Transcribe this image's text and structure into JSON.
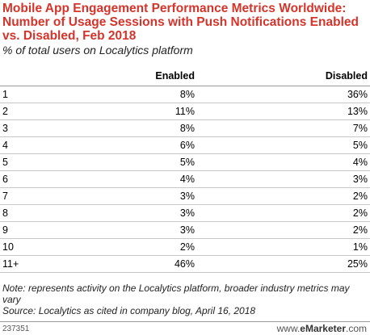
{
  "chart_data": {
    "type": "table",
    "title": "Mobile App Engagement Performance Metrics Worldwide: Number of Usage Sessions with Push Notifications Enabled vs. Disabled, Feb 2018",
    "subtitle": "% of total users on Localytics platform",
    "columns": [
      "",
      "Enabled",
      "Disabled"
    ],
    "categories": [
      "1",
      "2",
      "3",
      "4",
      "5",
      "6",
      "7",
      "8",
      "9",
      "10",
      "11+"
    ],
    "series": [
      {
        "name": "Enabled",
        "values": [
          "8%",
          "11%",
          "8%",
          "6%",
          "5%",
          "4%",
          "3%",
          "3%",
          "3%",
          "2%",
          "46%"
        ]
      },
      {
        "name": "Disabled",
        "values": [
          "36%",
          "13%",
          "7%",
          "5%",
          "4%",
          "3%",
          "2%",
          "2%",
          "2%",
          "1%",
          "25%"
        ]
      }
    ]
  },
  "footer": {
    "note": "Note: represents activity on the Localytics platform, broader industry metrics may vary",
    "source": "Source: Localytics as cited in company blog, April 16, 2018",
    "chart_id": "237351",
    "logo_prefix": "www.",
    "logo_brand": "eMarketer",
    "logo_suffix": ".com"
  }
}
